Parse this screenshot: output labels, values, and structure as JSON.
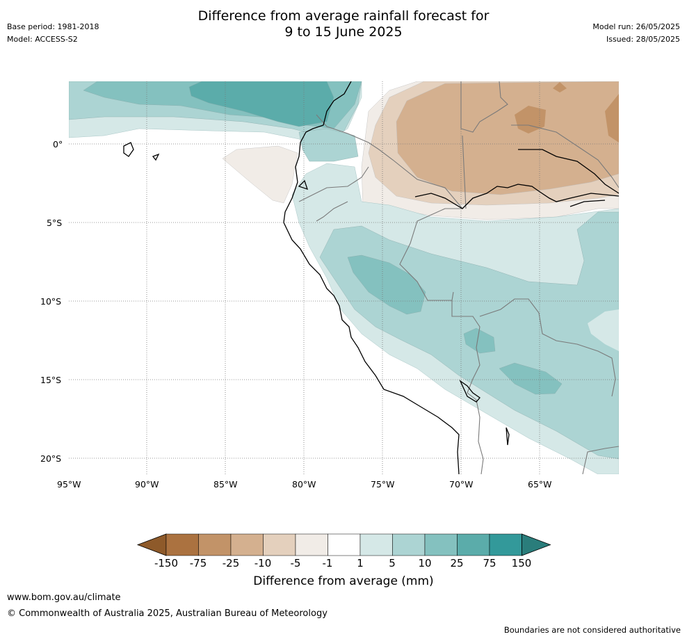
{
  "title": {
    "line1": "Difference from average rainfall forecast for",
    "line2": "9 to 15 June 2025"
  },
  "meta_left": {
    "base_period": "Base period: 1981-2018",
    "model": "Model: ACCESS-S2"
  },
  "meta_right": {
    "model_run": "Model run: 26/05/2025",
    "issued": "Issued: 28/05/2025"
  },
  "lat_labels": [
    "0°",
    "5°S",
    "10°S",
    "15°S",
    "20°S"
  ],
  "lon_labels": [
    "95°W",
    "90°W",
    "85°W",
    "80°W",
    "75°W",
    "70°W",
    "65°W"
  ],
  "colorbar": {
    "title": "Difference from average (mm)",
    "ticks": [
      "-150",
      "-75",
      "-25",
      "-10",
      "-5",
      "-1",
      "1",
      "5",
      "10",
      "25",
      "75",
      "150"
    ],
    "colors": [
      "#8e5a2a",
      "#ab7240",
      "#c29368",
      "#d4b08f",
      "#e4d0bd",
      "#f1ece7",
      "#ffffff",
      "#d5e8e7",
      "#acd4d3",
      "#84c1bf",
      "#5bacaa",
      "#33999a",
      "#2a7d7b"
    ]
  },
  "footer": {
    "url": "www.bom.gov.au/climate",
    "copyright": "© Commonwealth of Australia 2025, Australian Bureau of Meteorology",
    "disclaimer": "Boundaries are not considered authoritative"
  }
}
